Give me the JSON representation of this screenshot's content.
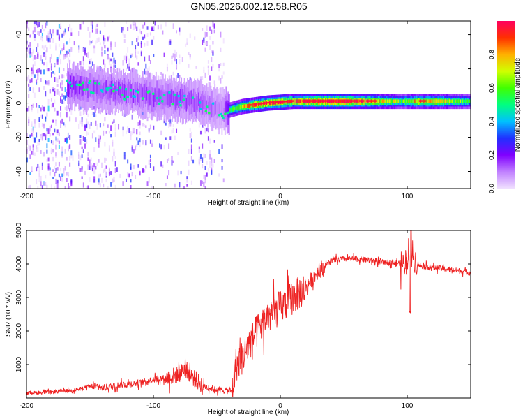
{
  "title": "GN05.2026.002.12.58.R05",
  "chart_data": [
    {
      "type": "heatmap",
      "title": "GN05.2026.002.12.58.R05",
      "xlabel": "Height of straight line (km)",
      "ylabel": "Frequency (Hz)",
      "xlim": [
        -200,
        150
      ],
      "ylim": [
        -50,
        48
      ],
      "xticks": [
        -200,
        -100,
        0,
        100
      ],
      "yticks": [
        -40,
        -20,
        0,
        20,
        40
      ],
      "colorbar": {
        "label": "Normalized spectral amplitude",
        "range": [
          0,
          1
        ],
        "ticks": [
          0.0,
          0.2,
          0.4,
          0.6,
          0.8
        ],
        "colormap": [
          "#f0e0ff",
          "#c080ff",
          "#8000ff",
          "#2030ff",
          "#00c0ff",
          "#00ff80",
          "#40ff00",
          "#d0ff00",
          "#ffb000",
          "#ff3000",
          "#ff0060"
        ]
      },
      "ridge": {
        "x": [
          -170,
          -150,
          -130,
          -110,
          -90,
          -70,
          -55,
          -45,
          -40,
          -30,
          -20,
          -10,
          0,
          10,
          20,
          40,
          60,
          80,
          95,
          110,
          130,
          150
        ],
        "frequency": [
          10,
          9,
          7,
          5,
          3,
          1,
          -2,
          -5,
          -4,
          -2,
          -1,
          0,
          0.5,
          1,
          1,
          1,
          1,
          1,
          1,
          1,
          1,
          1
        ],
        "amplitude": [
          0.35,
          0.3,
          0.3,
          0.3,
          0.3,
          0.3,
          0.25,
          0.2,
          0.6,
          0.7,
          0.85,
          0.9,
          0.9,
          0.85,
          0.95,
          1.0,
          0.95,
          0.75,
          0.6,
          0.8,
          0.7,
          0.5
        ]
      }
    },
    {
      "type": "line",
      "xlabel": "Height of straight line (km)",
      "ylabel": "SNR (10 * v/v)",
      "xlim": [
        -200,
        150
      ],
      "ylim": [
        0,
        5000
      ],
      "xticks": [
        -200,
        -100,
        0,
        100
      ],
      "yticks": [
        1000,
        2000,
        3000,
        4000,
        5000
      ],
      "color": "#ee2222",
      "series": [
        {
          "name": "SNR",
          "x": [
            -200,
            -180,
            -160,
            -150,
            -140,
            -125,
            -110,
            -100,
            -90,
            -80,
            -75,
            -70,
            -60,
            -50,
            -38,
            -35,
            -30,
            -25,
            -20,
            -10,
            0,
            10,
            20,
            30,
            40,
            50,
            60,
            70,
            80,
            90,
            97,
            100,
            102,
            105,
            110,
            120,
            130,
            140,
            150
          ],
          "y": [
            150,
            180,
            250,
            350,
            300,
            400,
            450,
            550,
            600,
            700,
            900,
            650,
            350,
            250,
            200,
            1000,
            1200,
            1600,
            1900,
            2400,
            2700,
            3000,
            3300,
            3800,
            4100,
            4150,
            4150,
            4100,
            4050,
            4050,
            4000,
            4200,
            4600,
            4200,
            3950,
            3900,
            3850,
            3800,
            3750
          ]
        }
      ]
    }
  ]
}
